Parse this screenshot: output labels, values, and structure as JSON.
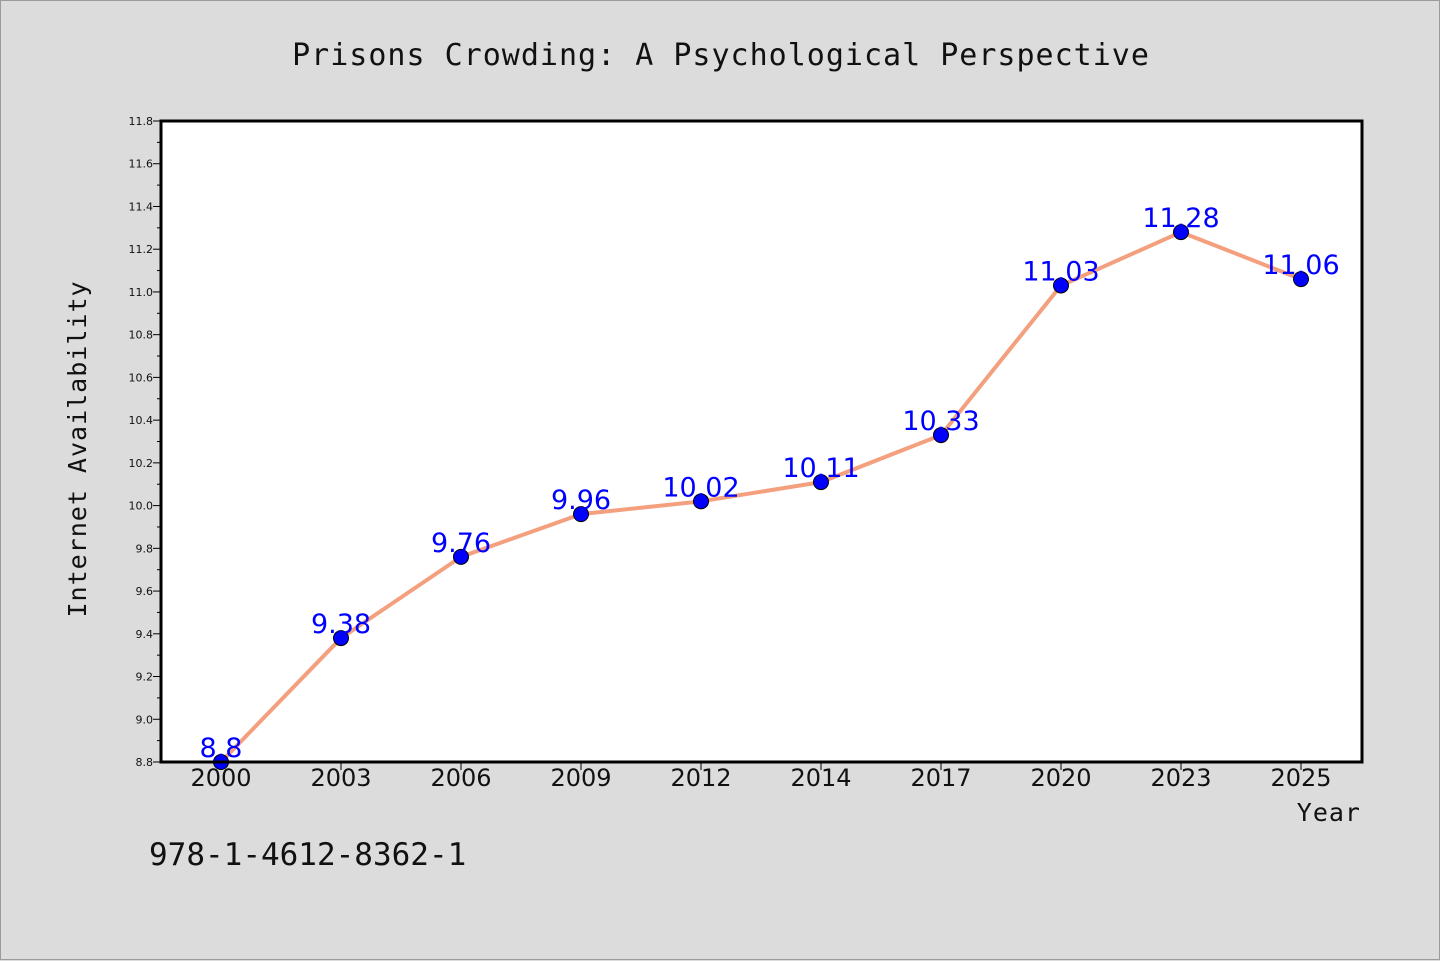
{
  "chart_data": {
    "type": "line",
    "title": "Prisons Crowding: A Psychological Perspective",
    "xlabel": "Year",
    "ylabel": "Internet Availability",
    "categories": [
      "2000",
      "2003",
      "2006",
      "2009",
      "2012",
      "2014",
      "2017",
      "2020",
      "2023",
      "2025"
    ],
    "series": [
      {
        "values": [
          8.8,
          9.38,
          9.76,
          9.96,
          10.02,
          10.11,
          10.33,
          11.03,
          11.28,
          11.06
        ],
        "labels": [
          "8.8",
          "9.38",
          "9.76",
          "9.96",
          "10.02",
          "10.11",
          "10.33",
          "11.03",
          "11.28",
          "11.06"
        ],
        "line_color": "#f4a07f",
        "marker_color": "#0000ff"
      }
    ],
    "ylim": [
      8.8,
      11.8
    ],
    "yticks": [
      "8.8",
      "9.0",
      "9.2",
      "9.4",
      "9.6",
      "9.8",
      "10.0",
      "10.2",
      "10.4",
      "10.6",
      "10.8",
      "11.0",
      "11.2",
      "11.4",
      "11.6",
      "11.8"
    ],
    "grid": false,
    "legend": "none"
  },
  "footer": {
    "isbn": "978-1-4612-8362-1"
  },
  "colors": {
    "background": "#dcdcdc",
    "plot_background": "#ffffff",
    "data_label": "#0000ff"
  }
}
